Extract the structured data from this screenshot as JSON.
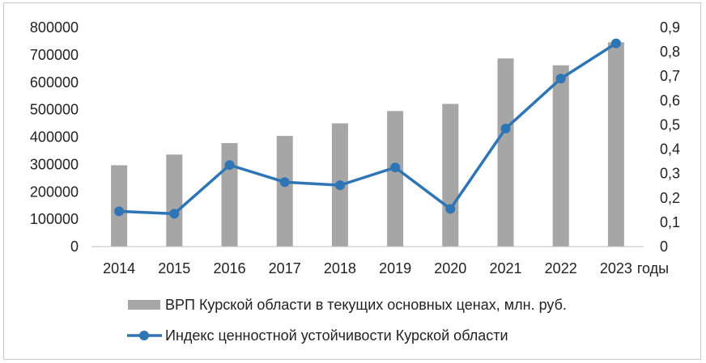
{
  "chart_data": {
    "type": "bar",
    "categories": [
      "2014",
      "2015",
      "2016",
      "2017",
      "2018",
      "2019",
      "2020",
      "2021",
      "2022",
      "2023"
    ],
    "x_unit_suffix": "годы",
    "series": [
      {
        "name": "ВРП Курской области в текущих основных ценах, млн. руб.",
        "kind": "bar",
        "axis": "left",
        "color": "#a6a6a6",
        "values": [
          297000,
          336000,
          378000,
          404000,
          450000,
          495000,
          521000,
          687000,
          662000,
          746000
        ]
      },
      {
        "name": "Индекс ценностной устойчивости Курской области",
        "kind": "line",
        "axis": "right",
        "color": "#2e75b6",
        "values": [
          0.145,
          0.135,
          0.335,
          0.265,
          0.252,
          0.325,
          0.155,
          0.485,
          0.69,
          0.835
        ]
      }
    ],
    "y_left": {
      "ylim": [
        0,
        800000
      ],
      "ticks": [
        "0",
        "100000",
        "200000",
        "300000",
        "400000",
        "500000",
        "600000",
        "700000",
        "800000"
      ]
    },
    "y_right": {
      "ylim": [
        0,
        0.9
      ],
      "ticks": [
        "0",
        "0,1",
        "0,2",
        "0,3",
        "0,4",
        "0,5",
        "0,6",
        "0,7",
        "0,8",
        "0,9"
      ]
    },
    "grid": false,
    "legend_position": "bottom"
  }
}
